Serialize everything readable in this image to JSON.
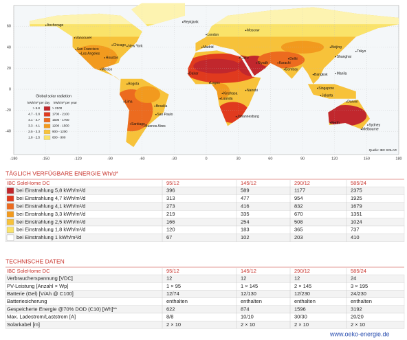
{
  "map": {
    "lat_labels": [
      60,
      40,
      20,
      0,
      -20,
      -40
    ],
    "lon_labels": [
      -180,
      -150,
      -120,
      -90,
      -60,
      -30,
      0,
      30,
      60,
      90,
      120,
      150,
      180
    ],
    "legend": {
      "title": "Global solar radiation",
      "col_day": "kWh/m² per day",
      "col_year": "kWh/m² per year",
      "rows": [
        {
          "day": "> 5.8",
          "year": "> 2100",
          "color": "#c1272d"
        },
        {
          "day": "4.7 - 5.8",
          "year": "1700 - 2100",
          "color": "#e03a1e"
        },
        {
          "day": "4.1 - 4.7",
          "year": "1500 - 1700",
          "color": "#ec6b1f"
        },
        {
          "day": "3.3 - 4.1",
          "year": "1200 - 1500",
          "color": "#f29a1e"
        },
        {
          "day": "2.5 - 3.3",
          "year": "900 - 1200",
          "color": "#f7c23a"
        },
        {
          "day": "1.8 - 2.5",
          "year": "600 - 900",
          "color": "#fae36a"
        }
      ]
    },
    "source": "Quelle: IBC SOLAR",
    "cities": [
      "Anchorage",
      "Vancouver",
      "Chicago",
      "New York",
      "San Francisco",
      "Los Angeles",
      "Houston",
      "Mexico",
      "Bogota",
      "Lima",
      "Brasilia",
      "Sao Paulo",
      "Santiago",
      "Buenos Aires",
      "Reykjavik",
      "London",
      "Madrid",
      "Moscow",
      "Cairo",
      "Dakar",
      "Lagos",
      "Kinshasa",
      "Nairobi",
      "Luanda",
      "Johannesburg",
      "Riyadh",
      "Karachi",
      "Delhi",
      "Bombay",
      "Beijing",
      "Shanghai",
      "Tokyo",
      "Bangkok",
      "Manila",
      "Singapore",
      "Jakarta",
      "Darwin",
      "Perth",
      "Sydney",
      "Melbourne"
    ]
  },
  "energy_table": {
    "title": "TÄGLICH VERFÜGBARE ENERGIE Wh/d*",
    "header": [
      "IBC SoleHome DC",
      "95/12",
      "145/12",
      "290/12",
      "585/24"
    ],
    "rows": [
      {
        "label": "bei Einstrahlung 5,8 kWh/m²/d",
        "color": "#c1272d",
        "values": [
          396,
          589,
          1177,
          2375
        ]
      },
      {
        "label": "bei Einstrahlung 4,7 kWh/m²/d",
        "color": "#e03a1e",
        "values": [
          313,
          477,
          954,
          1925
        ]
      },
      {
        "label": "bei Einstrahlung 4,1 kWh/m²/d",
        "color": "#ec6b1f",
        "values": [
          273,
          416,
          832,
          1679
        ]
      },
      {
        "label": "bei Einstrahlung 3,3 kWh/m²/d",
        "color": "#f29a1e",
        "values": [
          219,
          335,
          670,
          1351
        ]
      },
      {
        "label": "bei Einstrahlung 2,5 kWh/m²/d",
        "color": "#f7c23a",
        "values": [
          166,
          254,
          508,
          1024
        ]
      },
      {
        "label": "bei Einstrahlung 1,8 kWh/m²/d",
        "color": "#fae36a",
        "values": [
          120,
          183,
          365,
          737
        ]
      },
      {
        "label": "bei Einstrahlung 1 kWh/m²/d",
        "color": "#ffffff",
        "values": [
          67,
          102,
          203,
          410
        ]
      }
    ]
  },
  "tech_table": {
    "title": "TECHNISCHE DATEN",
    "header": [
      "IBC SoleHome DC",
      "95/12",
      "145/12",
      "290/12",
      "585/24"
    ],
    "rows": [
      {
        "label": "Verbraucherspannung [VDC]",
        "values": [
          12,
          12,
          12,
          24
        ]
      },
      {
        "label": "PV-Leistung [Anzahl × Wp]",
        "values": [
          "1 × 95",
          "1 × 145",
          "2 × 145",
          "3 × 195"
        ]
      },
      {
        "label": "Batterie (Gel) [V/Ah @ C100]",
        "values": [
          "12/74",
          "12/130",
          "12/230",
          "24/230"
        ]
      },
      {
        "label": "Batteriesicherung",
        "values": [
          "enthalten",
          "enthalten",
          "enthalten",
          "enthalten"
        ]
      },
      {
        "label": "Gespeicherte Energie @70% DOD (C10) [Wh]**",
        "values": [
          622,
          874,
          1596,
          3192
        ]
      },
      {
        "label": "Max. Ladestrom/Laststrom [A]",
        "values": [
          "8/8",
          "10/10",
          "30/30",
          "20/20"
        ]
      },
      {
        "label": "Solarkabel [m]",
        "values": [
          "2 × 10",
          "2 × 10",
          "2 × 10",
          "2 × 10"
        ]
      }
    ]
  },
  "footer": "www.oeko-energie.de"
}
